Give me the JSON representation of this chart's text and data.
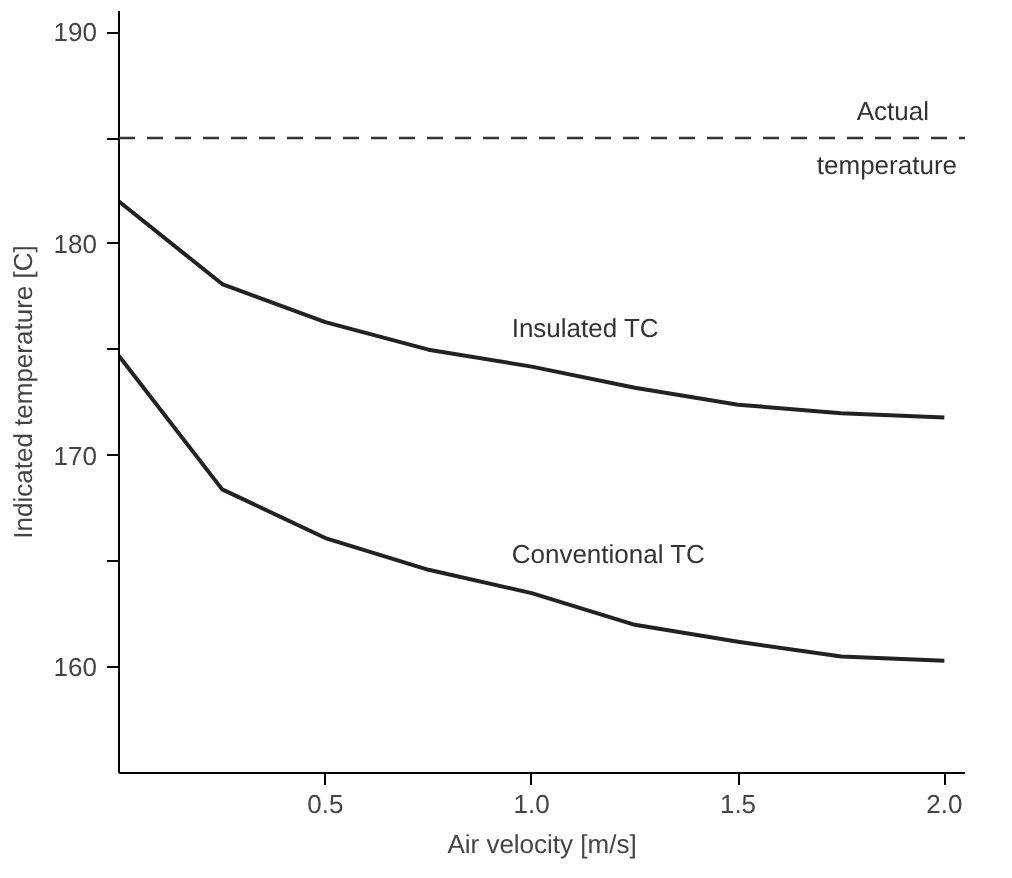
{
  "chart_data": {
    "type": "line",
    "xlabel": "Air velocity [m/s]",
    "ylabel": "Indicated temperature [C]",
    "xlim": [
      0,
      2.05
    ],
    "ylim": [
      155,
      191
    ],
    "xticks": [
      0.5,
      {
        "value": 1,
        "label": "1.0"
      },
      1.5,
      {
        "value": 2,
        "label": "2.0"
      }
    ],
    "yticks": [
      160,
      {
        "value": 165,
        "label": null
      },
      170,
      {
        "value": 175,
        "label": null
      },
      180,
      {
        "value": 185,
        "label": null
      },
      190
    ],
    "grid": false,
    "marker": "none",
    "line_style": "solid",
    "ref_lines": [
      {
        "axis": "y",
        "value": 185,
        "label": "Actual temperature",
        "line_style": "dashed"
      }
    ],
    "series": [
      {
        "name": "Insulated TC",
        "color": "#222222",
        "x": [
          0,
          0.25,
          0.5,
          0.75,
          1.0,
          1.25,
          1.5,
          1.75,
          2.0
        ],
        "values": [
          182.0,
          178.1,
          176.3,
          175.0,
          174.2,
          173.2,
          172.4,
          172.0,
          171.8
        ]
      },
      {
        "name": "Conventional TC",
        "color": "#222222",
        "x": [
          0,
          0.25,
          0.5,
          0.75,
          1.0,
          1.25,
          1.5,
          1.75,
          2.0
        ],
        "values": [
          174.7,
          168.4,
          166.1,
          164.6,
          163.5,
          162.0,
          161.2,
          160.5,
          160.3
        ]
      }
    ]
  }
}
